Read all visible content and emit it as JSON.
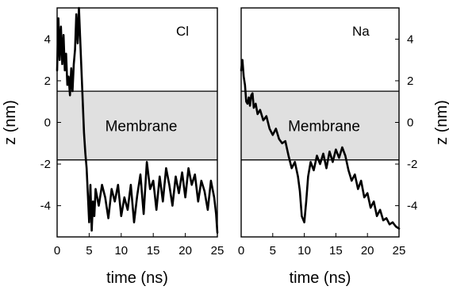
{
  "chart_data": [
    {
      "type": "line",
      "panel_label": "Cl",
      "xlabel": "time (ns)",
      "ylabel": "z (nm)",
      "xlim": [
        0,
        25
      ],
      "ylim": [
        -5.5,
        5.5
      ],
      "xticks": [
        0,
        5,
        10,
        15,
        20,
        25
      ],
      "yticks": [
        -4,
        -2,
        0,
        2,
        4
      ],
      "y_axis_side": "left",
      "region": {
        "label": "Membrane",
        "ymin": -1.8,
        "ymax": 1.5
      },
      "series": [
        {
          "x": [
            0,
            0.2,
            0.4,
            0.6,
            0.8,
            1.0,
            1.2,
            1.4,
            1.6,
            1.8,
            2.0,
            2.2,
            2.4,
            2.6,
            2.8,
            3.0,
            3.2,
            3.4,
            3.6,
            3.8,
            4.0,
            4.2,
            4.4,
            4.6,
            4.8,
            5.0,
            5.2,
            5.4,
            5.6,
            5.8,
            6.0,
            6.5,
            7.0,
            7.5,
            8.0,
            8.5,
            9.0,
            9.5,
            10.0,
            10.5,
            11.0,
            11.5,
            12.0,
            12.5,
            13.0,
            13.5,
            14.0,
            14.5,
            15.0,
            15.5,
            16.0,
            16.5,
            17.0,
            17.5,
            18.0,
            18.5,
            19.0,
            19.5,
            20.0,
            20.5,
            21.0,
            21.5,
            22.0,
            22.5,
            23.0,
            23.5,
            24.0,
            24.5,
            24.8,
            25.0
          ],
          "y": [
            2.5,
            5.0,
            3.0,
            4.6,
            2.8,
            4.2,
            2.5,
            3.3,
            1.8,
            2.2,
            1.3,
            2.6,
            1.5,
            2.8,
            3.5,
            5.2,
            3.8,
            5.5,
            4.0,
            2.5,
            1.0,
            -0.5,
            -1.5,
            -2.2,
            -3.5,
            -4.8,
            -3.0,
            -5.2,
            -3.8,
            -4.5,
            -3.2,
            -4.0,
            -3.0,
            -3.6,
            -4.6,
            -3.2,
            -3.8,
            -3.0,
            -4.5,
            -3.6,
            -4.2,
            -3.0,
            -4.8,
            -3.5,
            -2.5,
            -4.4,
            -1.9,
            -3.2,
            -2.8,
            -4.2,
            -2.6,
            -3.8,
            -2.2,
            -3.0,
            -4.0,
            -2.6,
            -3.4,
            -2.4,
            -3.6,
            -2.2,
            -3.0,
            -2.5,
            -3.8,
            -2.8,
            -3.3,
            -4.2,
            -2.8,
            -3.6,
            -4.4,
            -5.3
          ]
        }
      ]
    },
    {
      "type": "line",
      "panel_label": "Na",
      "xlabel": "time (ns)",
      "ylabel": "z (nm)",
      "xlim": [
        0,
        25
      ],
      "ylim": [
        -5.5,
        5.5
      ],
      "xticks": [
        0,
        5,
        10,
        15,
        20,
        25
      ],
      "yticks": [
        -4,
        -2,
        0,
        2,
        4
      ],
      "y_axis_side": "right",
      "region": {
        "label": "Membrane",
        "ymin": -1.8,
        "ymax": 1.5
      },
      "series": [
        {
          "x": [
            0,
            0.2,
            0.4,
            0.6,
            0.8,
            1.0,
            1.2,
            1.4,
            1.6,
            1.8,
            2.0,
            2.3,
            2.6,
            3.0,
            3.5,
            4.0,
            4.5,
            5.0,
            5.5,
            6.0,
            6.5,
            7.0,
            7.5,
            8.0,
            8.5,
            9.0,
            9.3,
            9.6,
            10.0,
            10.3,
            10.6,
            11.0,
            11.5,
            12.0,
            12.5,
            13.0,
            13.5,
            14.0,
            14.5,
            15.0,
            15.5,
            16.0,
            16.5,
            17.0,
            17.5,
            18.0,
            18.5,
            19.0,
            19.5,
            20.0,
            20.5,
            21.0,
            21.5,
            22.0,
            22.5,
            23.0,
            23.5,
            24.0,
            24.5,
            25.0
          ],
          "y": [
            2.5,
            3.0,
            2.2,
            1.8,
            1.0,
            0.9,
            1.2,
            0.8,
            1.3,
            1.4,
            0.7,
            0.9,
            0.4,
            0.6,
            0.1,
            0.3,
            -0.3,
            -0.6,
            -0.3,
            -0.8,
            -1.0,
            -0.9,
            -1.6,
            -2.2,
            -1.9,
            -2.6,
            -3.3,
            -4.5,
            -4.8,
            -3.8,
            -2.6,
            -1.9,
            -2.3,
            -1.6,
            -2.0,
            -1.5,
            -2.2,
            -1.4,
            -1.9,
            -1.3,
            -1.7,
            -1.2,
            -1.6,
            -2.3,
            -2.8,
            -2.5,
            -3.2,
            -2.8,
            -3.6,
            -3.4,
            -4.1,
            -3.8,
            -4.5,
            -4.2,
            -4.7,
            -4.6,
            -4.9,
            -4.8,
            -5.0,
            -5.1
          ]
        }
      ]
    }
  ]
}
